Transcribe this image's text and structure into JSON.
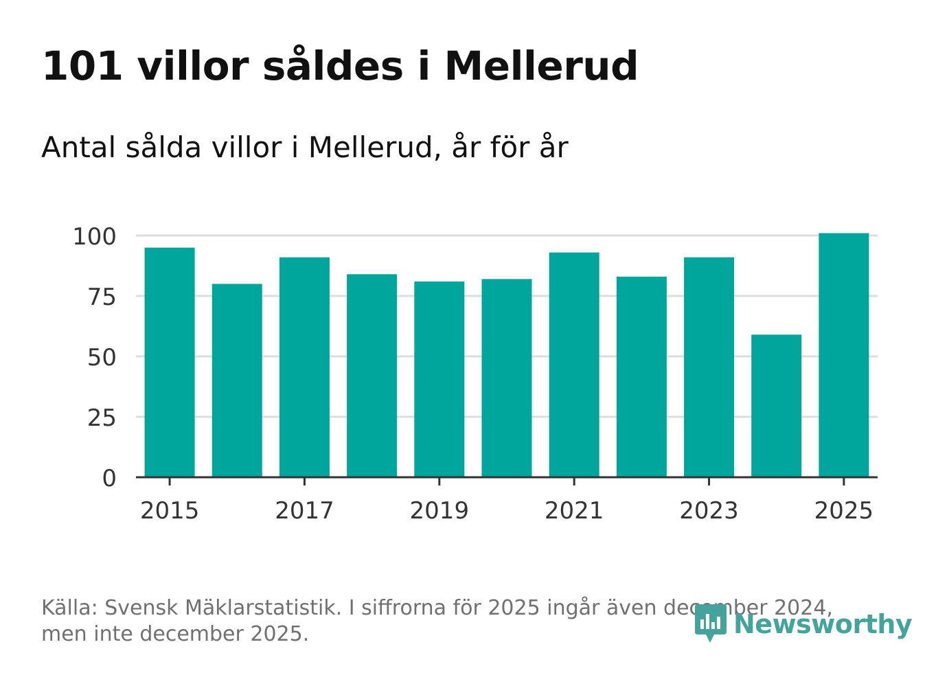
{
  "title": "101 villor såldes i Mellerud",
  "subtitle": "Antal sålda villor i Mellerud, år för år",
  "source": {
    "line1": "Källa: Svensk Mäklarstatistik. I siffrorna för 2025 ingår även december 2024,",
    "line2": "men inte december 2025."
  },
  "logo": {
    "text": "Newsworthy",
    "icon": "newsworthy-logo-icon"
  },
  "colors": {
    "bar": "#00a59b",
    "grid": "#dddddd",
    "axis": "#333333",
    "tick_text": "#333333",
    "logo": "#44a39a"
  },
  "chart_data": {
    "type": "bar",
    "title": "101 villor såldes i Mellerud",
    "subtitle": "Antal sålda villor i Mellerud, år för år",
    "xlabel": "",
    "ylabel": "",
    "categories": [
      "2015",
      "2016",
      "2017",
      "2018",
      "2019",
      "2020",
      "2021",
      "2022",
      "2023",
      "2024",
      "2025"
    ],
    "values": [
      95,
      80,
      91,
      84,
      81,
      82,
      93,
      83,
      91,
      59,
      101
    ],
    "x_tick_labels": [
      "2015",
      "2017",
      "2019",
      "2021",
      "2023",
      "2025"
    ],
    "y_ticks": [
      0,
      25,
      50,
      75,
      100
    ],
    "ylim": [
      0,
      101
    ],
    "grid": true
  }
}
